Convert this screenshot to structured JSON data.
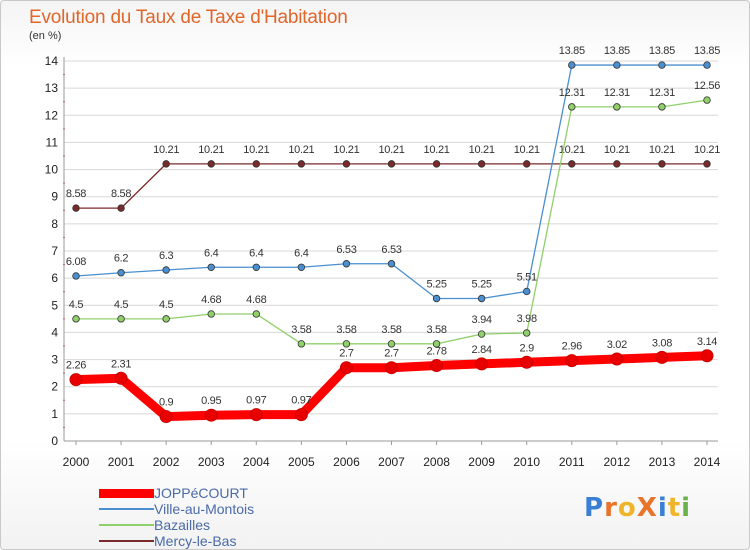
{
  "title": "Evolution du Taux de Taxe d'Habitation",
  "subtitle": "(en %)",
  "logo": {
    "text": "ProXiti",
    "colors": [
      "#3b7fd4",
      "#e8742c",
      "#f0b428",
      "#e8742c",
      "#3b7fd4",
      "#f0b428",
      "#6ab04c"
    ]
  },
  "chart_data": {
    "type": "line",
    "title": "Evolution du Taux de Taxe d'Habitation",
    "ylabel": "(en %)",
    "xlabel": "",
    "ylim": [
      0,
      14
    ],
    "yticks": [
      "0",
      "1",
      "2",
      "3",
      "4",
      "5",
      "6",
      "7",
      "8",
      "9",
      "10",
      "11",
      "12",
      "13",
      "14"
    ],
    "grid": "horizontal",
    "legend_position": "bottom-left",
    "categories": [
      "2000",
      "2001",
      "2002",
      "2003",
      "2004",
      "2005",
      "2006",
      "2007",
      "2008",
      "2009",
      "2010",
      "2011",
      "2012",
      "2013",
      "2014"
    ],
    "series": [
      {
        "name": "JOPPéCOURT",
        "color": "#ff0000",
        "values": [
          2.26,
          2.31,
          0.9,
          0.95,
          0.97,
          0.97,
          2.7,
          2.7,
          2.78,
          2.84,
          2.9,
          2.96,
          3.02,
          3.08,
          3.14
        ],
        "labels": [
          "2.26",
          "2.31",
          "0.9",
          "0.95",
          "0.97",
          "0.97",
          "2.7",
          "2.7",
          "2.78",
          "2.84",
          "2.9",
          "2.96",
          "3.02",
          "3.08",
          "3.14"
        ]
      },
      {
        "name": "Ville-au-Montois",
        "color": "#4a8fd0",
        "values": [
          6.08,
          6.2,
          6.3,
          6.4,
          6.4,
          6.4,
          6.53,
          6.53,
          5.25,
          5.25,
          5.51,
          13.85,
          13.85,
          13.85,
          13.85
        ],
        "labels": [
          "6.08",
          "6.2",
          "6.3",
          "6.4",
          "6.4",
          "6.4",
          "6.53",
          "6.53",
          "5.25",
          "5.25",
          "5.51",
          "13.85",
          "13.85",
          "13.85",
          "13.85"
        ]
      },
      {
        "name": "Bazailles",
        "color": "#8fd06a",
        "values": [
          4.5,
          4.5,
          4.5,
          4.68,
          4.68,
          3.58,
          3.58,
          3.58,
          3.58,
          3.94,
          3.98,
          12.31,
          12.31,
          12.31,
          12.56
        ],
        "labels": [
          "4.5",
          "4.5",
          "4.5",
          "4.68",
          "4.68",
          "3.58",
          "3.58",
          "3.58",
          "3.58",
          "3.94",
          "3.98",
          "12.31",
          "12.31",
          "12.31",
          "12.56"
        ]
      },
      {
        "name": "Mercy-le-Bas",
        "color": "#7a2a2a",
        "values": [
          8.58,
          8.58,
          10.21,
          10.21,
          10.21,
          10.21,
          10.21,
          10.21,
          10.21,
          10.21,
          10.21,
          10.21,
          10.21,
          10.21,
          10.21
        ],
        "labels": [
          "8.58",
          "8.58",
          "10.21",
          "10.21",
          "10.21",
          "10.21",
          "10.21",
          "10.21",
          "10.21",
          "10.21",
          "10.21",
          "10.21",
          "10.21",
          "10.21",
          "10.21"
        ]
      }
    ]
  }
}
